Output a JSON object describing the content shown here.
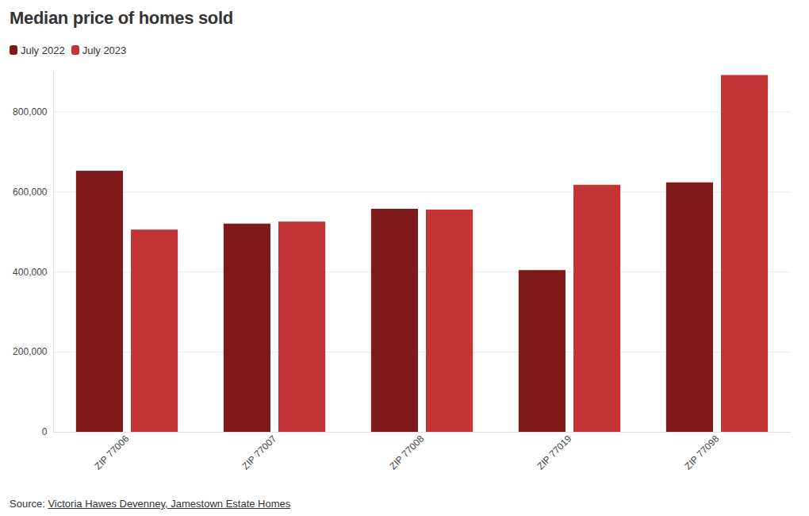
{
  "chart_data": {
    "type": "bar",
    "title": "Median price of homes sold",
    "categories": [
      "ZIP 77006",
      "ZIP 77007",
      "ZIP 77008",
      "ZIP 77019",
      "ZIP 77098"
    ],
    "series": [
      {
        "name": "July 2022",
        "color": "#7f1a1a",
        "values": [
          652000,
          520000,
          557000,
          404000,
          623000
        ]
      },
      {
        "name": "July 2023",
        "color": "#c43333",
        "values": [
          505000,
          525000,
          555000,
          617000,
          891000
        ]
      }
    ],
    "ylim": [
      0,
      900000
    ],
    "yticks": [
      0,
      {
        "value": 200000,
        "label": "200,000"
      },
      {
        "value": 400000,
        "label": "400,000"
      },
      {
        "value": 600000,
        "label": "600,000"
      },
      {
        "value": 800000,
        "label": "800,000"
      }
    ],
    "grid": true,
    "legend": "top-left",
    "source": {
      "label": "Source:",
      "text": "Victoria Hawes Devenney, Jamestown Estate Homes"
    }
  }
}
